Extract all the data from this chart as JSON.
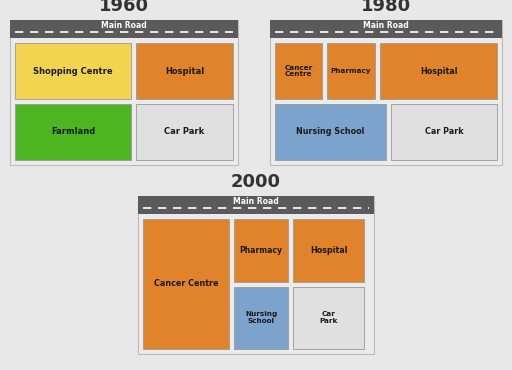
{
  "title_1960": "1960",
  "title_1980": "1980",
  "title_2000": "2000",
  "road_label": "Main Road",
  "road_color": "#5a5a5a",
  "outer_border_color": "#bbbbbb",
  "colors": {
    "yellow": "#f2d44e",
    "orange": "#e0832a",
    "green": "#4db520",
    "lightgray": "#e0e0e0",
    "blue": "#7ba3cc"
  },
  "diagram_bg": "#ebebeb",
  "page_bg": "#e8e8e8"
}
